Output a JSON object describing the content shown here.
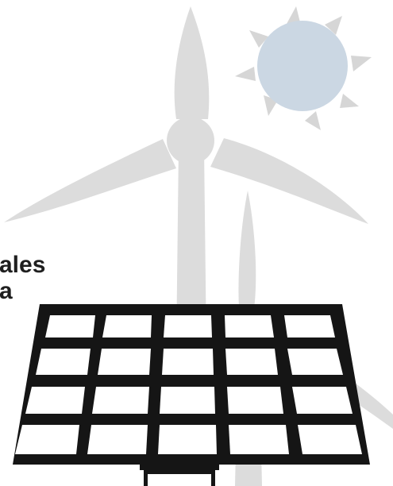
{
  "text_fragments": {
    "line_1": "ales",
    "line_2": "a"
  },
  "colors": {
    "turbine": "#dcdcdc",
    "sun_disc": "#cbd7e3",
    "sun_rays": "#d6d6d6",
    "panel_frame": "#151515",
    "panel_cell": "#ffffff",
    "text": "#1f1f1f"
  },
  "icons": [
    "wind-turbine-icon",
    "sun-icon",
    "solar-panel-icon"
  ]
}
